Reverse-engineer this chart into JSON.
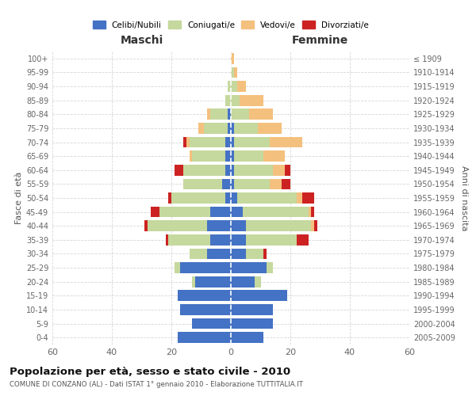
{
  "age_groups": [
    "100+",
    "95-99",
    "90-94",
    "85-89",
    "80-84",
    "75-79",
    "70-74",
    "65-69",
    "60-64",
    "55-59",
    "50-54",
    "45-49",
    "40-44",
    "35-39",
    "30-34",
    "25-29",
    "20-24",
    "15-19",
    "10-14",
    "5-9",
    "0-4"
  ],
  "birth_years": [
    "≤ 1909",
    "1910-1914",
    "1915-1919",
    "1920-1924",
    "1925-1929",
    "1930-1934",
    "1935-1939",
    "1940-1944",
    "1945-1949",
    "1950-1954",
    "1955-1959",
    "1960-1964",
    "1965-1969",
    "1970-1974",
    "1975-1979",
    "1980-1984",
    "1985-1989",
    "1990-1994",
    "1995-1999",
    "2000-2004",
    "2005-2009"
  ],
  "maschi": {
    "celibi": [
      0,
      0,
      0,
      0,
      1,
      1,
      2,
      2,
      2,
      3,
      2,
      7,
      8,
      7,
      8,
      17,
      12,
      18,
      17,
      13,
      18
    ],
    "coniugati": [
      0,
      0,
      1,
      2,
      6,
      8,
      12,
      11,
      14,
      13,
      18,
      17,
      20,
      14,
      6,
      2,
      1,
      0,
      0,
      0,
      0
    ],
    "vedovi": [
      0,
      0,
      0,
      0,
      1,
      2,
      1,
      1,
      0,
      0,
      0,
      0,
      0,
      0,
      0,
      0,
      0,
      0,
      0,
      0,
      0
    ],
    "divorziati": [
      0,
      0,
      0,
      0,
      0,
      0,
      1,
      0,
      3,
      0,
      1,
      3,
      1,
      1,
      0,
      0,
      0,
      0,
      0,
      0,
      0
    ]
  },
  "femmine": {
    "nubili": [
      0,
      0,
      0,
      0,
      0,
      1,
      1,
      1,
      1,
      1,
      2,
      4,
      5,
      5,
      5,
      12,
      8,
      19,
      14,
      14,
      11
    ],
    "coniugate": [
      0,
      1,
      2,
      3,
      6,
      8,
      12,
      10,
      13,
      12,
      20,
      22,
      22,
      17,
      6,
      2,
      2,
      0,
      0,
      0,
      0
    ],
    "vedove": [
      1,
      1,
      3,
      8,
      8,
      8,
      11,
      7,
      4,
      4,
      2,
      1,
      1,
      0,
      0,
      0,
      0,
      0,
      0,
      0,
      0
    ],
    "divorziate": [
      0,
      0,
      0,
      0,
      0,
      0,
      0,
      0,
      2,
      3,
      4,
      1,
      1,
      4,
      1,
      0,
      0,
      0,
      0,
      0,
      0
    ]
  },
  "color_celibi": "#4472c4",
  "color_coniugati": "#c5d89d",
  "color_vedovi": "#f4c07e",
  "color_divorziati": "#cc2222",
  "title": "Popolazione per età, sesso e stato civile - 2010",
  "subtitle": "COMUNE DI CONZANO (AL) - Dati ISTAT 1° gennaio 2010 - Elaborazione TUTTITALIA.IT",
  "ylabel_left": "Fasce di età",
  "ylabel_right": "Anni di nascita",
  "xlabel_maschi": "Maschi",
  "xlabel_femmine": "Femmine",
  "xlim": 60,
  "legend_labels": [
    "Celibi/Nubili",
    "Coniugati/e",
    "Vedovi/e",
    "Divorziati/e"
  ],
  "bg_color": "#ffffff",
  "grid_color": "#cccccc"
}
